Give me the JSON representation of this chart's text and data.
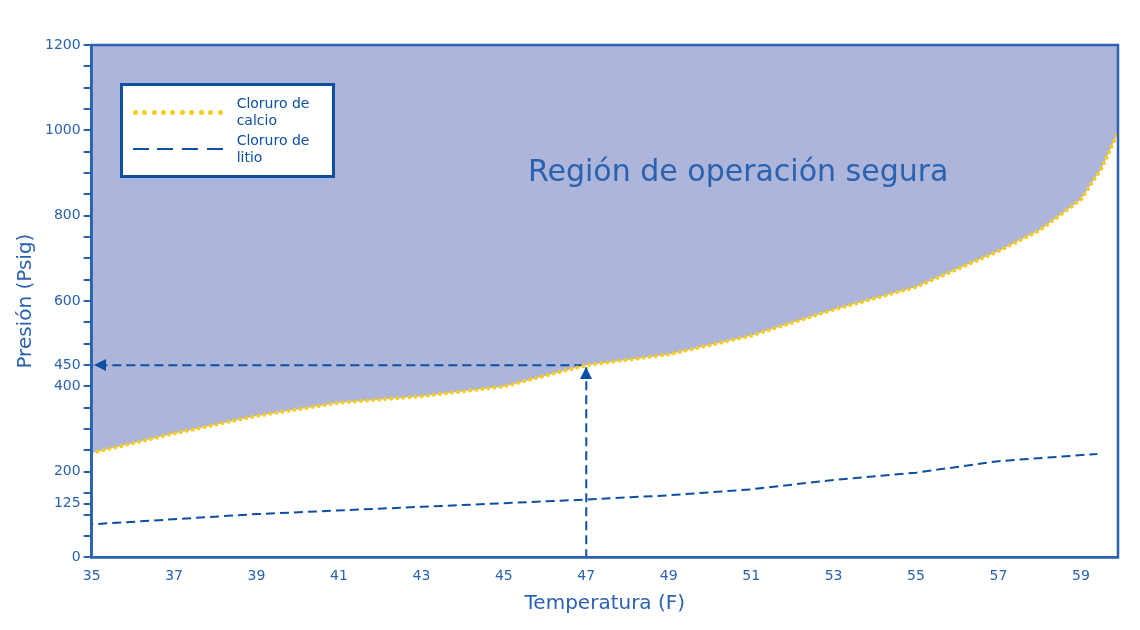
{
  "chart_data": {
    "type": "line",
    "xlabel": "Temperatura (F)",
    "ylabel": "Presión (Psig)",
    "xlim": [
      35,
      59.9
    ],
    "xticks": [
      35,
      37,
      39,
      41,
      43,
      45,
      47,
      49,
      51,
      53,
      55,
      57,
      59
    ],
    "ylim": [
      0,
      1200
    ],
    "yticks": [
      0,
      {
        "value": 50,
        "label": null
      },
      {
        "value": 100,
        "label": null
      },
      125,
      {
        "value": 150,
        "label": null
      },
      200,
      {
        "value": 250,
        "label": null
      },
      {
        "value": 300,
        "label": null
      },
      {
        "value": 350,
        "label": null
      },
      400,
      450,
      {
        "value": 500,
        "label": null
      },
      {
        "value": 550,
        "label": null
      },
      600,
      {
        "value": 650,
        "label": null
      },
      {
        "value": 700,
        "label": null
      },
      {
        "value": 750,
        "label": null
      },
      800,
      {
        "value": 850,
        "label": null
      },
      {
        "value": 900,
        "label": null
      },
      {
        "value": 950,
        "label": null
      },
      1000,
      {
        "value": 1050,
        "label": null
      },
      {
        "value": 1100,
        "label": null
      },
      {
        "value": 1150,
        "label": null
      },
      1200
    ],
    "grid": false,
    "legend": "top left",
    "marker": "none",
    "series": [
      {
        "type": "area",
        "color": "#adb5db",
        "x": [
          35,
          37,
          39,
          41,
          43,
          45,
          47,
          49,
          51,
          53,
          55,
          57,
          58,
          59,
          59.5,
          59.9
        ],
        "values": [
          1200,
          1200,
          1200,
          1200,
          1200,
          1200,
          1200,
          1200,
          1200,
          1200,
          1200,
          1200,
          1200,
          1200,
          1200,
          1200
        ]
      },
      {
        "name": "Cloruro de calcio",
        "color": "#f7cd1a",
        "line_style": "dotted",
        "x": [
          35,
          37,
          39,
          41,
          43,
          45,
          47,
          49,
          51,
          53,
          55,
          57,
          58,
          59,
          59.5,
          59.9
        ],
        "values": [
          244,
          290,
          331,
          362,
          377,
          400,
          450,
          475,
          519,
          580,
          633,
          717,
          766,
          838,
          911,
          995
        ]
      },
      {
        "name": "Cloruro de litio",
        "color": "#0d4fa3",
        "line_style": "dashed",
        "x": [
          35,
          39,
          43,
          47,
          49,
          51,
          53,
          55,
          57,
          59.4
        ],
        "values": [
          77,
          101,
          118,
          135,
          145,
          159,
          181,
          198,
          225,
          242
        ]
      },
      {
        "color": "#0d4fa3",
        "line_style": "dashed",
        "x": [
          35,
          47,
          47
        ],
        "values": [
          450,
          450,
          0
        ]
      }
    ],
    "annotations": [
      "Región de operación segura"
    ]
  }
}
